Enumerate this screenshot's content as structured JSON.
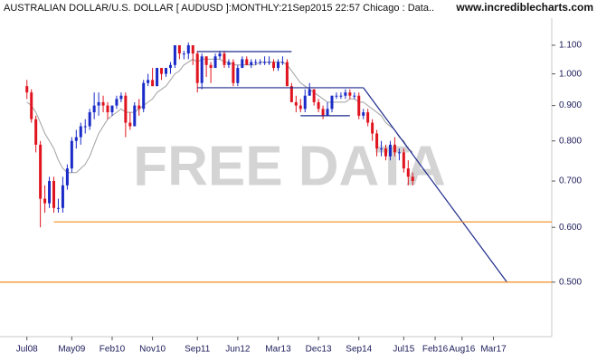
{
  "chart_data": {
    "type": "candlestick",
    "title": "AUSTRALIAN DOLLAR/U.S. DOLLAR [ AUDUSD ]:MONTHLY:21Sep2015 22:57 Chicago : Data..",
    "source": "www.incrediblecharts.com",
    "watermark": "FREE DATA",
    "log_scale": true,
    "up_color": "#1a2bc8",
    "down_color": "#e0141e",
    "xlim": [
      "2008-01",
      "2018-04"
    ],
    "ylim": [
      0.417,
      1.204
    ],
    "yticks": [
      {
        "value": 1.1,
        "label": "1.100"
      },
      {
        "value": 1.0,
        "label": "1.000"
      },
      {
        "value": 0.9,
        "label": "0.900"
      },
      {
        "value": 0.8,
        "label": "0.800"
      },
      {
        "value": 0.7,
        "label": "0.700"
      },
      {
        "value": 0.6,
        "label": "0.600"
      },
      {
        "value": 0.5,
        "label": "0.500"
      }
    ],
    "xticks": [
      {
        "value": "2008-07",
        "label": "Jul08"
      },
      {
        "value": "2009-05",
        "label": "May09"
      },
      {
        "value": "2010-02",
        "label": "Feb10"
      },
      {
        "value": "2010-11",
        "label": "Nov10"
      },
      {
        "value": "2011-09",
        "label": "Sep11"
      },
      {
        "value": "2012-06",
        "label": "Jun12"
      },
      {
        "value": "2013-03",
        "label": "Mar13"
      },
      {
        "value": "2013-12",
        "label": "Dec13"
      },
      {
        "value": "2014-09",
        "label": "Sep14"
      },
      {
        "value": "2015-07",
        "label": "Jul15"
      },
      {
        "value": "2016-02",
        "label": "Feb16"
      },
      {
        "value": "2016-08",
        "label": "Aug16"
      },
      {
        "value": "2017-03",
        "label": "Mar17"
      }
    ],
    "x": [
      "2008-07",
      "2008-08",
      "2008-09",
      "2008-10",
      "2008-11",
      "2008-12",
      "2009-01",
      "2009-02",
      "2009-03",
      "2009-04",
      "2009-05",
      "2009-06",
      "2009-07",
      "2009-08",
      "2009-09",
      "2009-10",
      "2009-11",
      "2009-12",
      "2010-01",
      "2010-02",
      "2010-03",
      "2010-04",
      "2010-05",
      "2010-06",
      "2010-07",
      "2010-08",
      "2010-09",
      "2010-10",
      "2010-11",
      "2010-12",
      "2011-01",
      "2011-02",
      "2011-03",
      "2011-04",
      "2011-05",
      "2011-06",
      "2011-07",
      "2011-08",
      "2011-09",
      "2011-10",
      "2011-11",
      "2011-12",
      "2012-01",
      "2012-02",
      "2012-03",
      "2012-04",
      "2012-05",
      "2012-06",
      "2012-07",
      "2012-08",
      "2012-09",
      "2012-10",
      "2012-11",
      "2012-12",
      "2013-01",
      "2013-02",
      "2013-03",
      "2013-04",
      "2013-05",
      "2013-06",
      "2013-07",
      "2013-08",
      "2013-09",
      "2013-10",
      "2013-11",
      "2013-12",
      "2014-01",
      "2014-02",
      "2014-03",
      "2014-04",
      "2014-05",
      "2014-06",
      "2014-07",
      "2014-08",
      "2014-09",
      "2014-10",
      "2014-11",
      "2014-12",
      "2015-01",
      "2015-02",
      "2015-03",
      "2015-04",
      "2015-05",
      "2015-06",
      "2015-07",
      "2015-08",
      "2015-09"
    ],
    "open": [
      0.96,
      0.94,
      0.86,
      0.79,
      0.66,
      0.65,
      0.7,
      0.64,
      0.64,
      0.69,
      0.73,
      0.8,
      0.81,
      0.84,
      0.84,
      0.88,
      0.9,
      0.91,
      0.9,
      0.88,
      0.9,
      0.92,
      0.93,
      0.85,
      0.84,
      0.9,
      0.89,
      0.97,
      0.98,
      0.96,
      1.02,
      1.0,
      1.02,
      1.03,
      1.1,
      1.07,
      1.07,
      1.1,
      1.07,
      0.97,
      1.06,
      1.03,
      1.02,
      1.06,
      1.07,
      1.03,
      1.04,
      0.97,
      1.02,
      1.05,
      1.03,
      1.04,
      1.04,
      1.04,
      1.04,
      1.04,
      1.02,
      1.04,
      1.04,
      0.96,
      0.91,
      0.9,
      0.89,
      0.93,
      0.95,
      0.91,
      0.89,
      0.87,
      0.89,
      0.93,
      0.93,
      0.93,
      0.94,
      0.93,
      0.93,
      0.87,
      0.88,
      0.85,
      0.82,
      0.78,
      0.78,
      0.76,
      0.79,
      0.77,
      0.77,
      0.73,
      0.71
    ],
    "high": [
      0.98,
      0.95,
      0.87,
      0.8,
      0.69,
      0.71,
      0.71,
      0.66,
      0.71,
      0.74,
      0.81,
      0.83,
      0.85,
      0.86,
      0.89,
      0.94,
      0.94,
      0.93,
      0.91,
      0.9,
      0.93,
      0.94,
      0.94,
      0.88,
      0.91,
      0.92,
      0.98,
      1.0,
      1.02,
      1.02,
      1.02,
      1.02,
      1.04,
      1.1,
      1.1,
      1.08,
      1.11,
      1.1,
      1.08,
      1.07,
      1.06,
      1.04,
      1.07,
      1.08,
      1.08,
      1.05,
      1.05,
      1.03,
      1.06,
      1.06,
      1.05,
      1.05,
      1.05,
      1.06,
      1.06,
      1.05,
      1.05,
      1.06,
      1.05,
      0.97,
      0.93,
      0.92,
      0.95,
      0.97,
      0.95,
      0.92,
      0.9,
      0.91,
      0.93,
      0.94,
      0.94,
      0.95,
      0.95,
      0.94,
      0.94,
      0.89,
      0.89,
      0.86,
      0.83,
      0.8,
      0.79,
      0.8,
      0.81,
      0.78,
      0.78,
      0.75,
      0.72
    ],
    "low": [
      0.92,
      0.85,
      0.77,
      0.6,
      0.63,
      0.64,
      0.63,
      0.63,
      0.63,
      0.68,
      0.72,
      0.78,
      0.79,
      0.82,
      0.83,
      0.86,
      0.87,
      0.88,
      0.86,
      0.87,
      0.89,
      0.91,
      0.81,
      0.83,
      0.84,
      0.87,
      0.88,
      0.96,
      0.96,
      0.96,
      0.98,
      0.99,
      1.0,
      1.02,
      1.05,
      1.05,
      1.05,
      1.03,
      0.94,
      0.95,
      0.99,
      0.97,
      1.02,
      1.05,
      1.02,
      1.02,
      0.96,
      0.96,
      1.02,
      1.03,
      1.02,
      1.03,
      1.03,
      1.03,
      1.03,
      1.01,
      1.01,
      1.03,
      0.96,
      0.91,
      0.88,
      0.88,
      0.88,
      0.93,
      0.9,
      0.88,
      0.86,
      0.87,
      0.88,
      0.92,
      0.92,
      0.92,
      0.92,
      0.92,
      0.86,
      0.86,
      0.84,
      0.8,
      0.76,
      0.76,
      0.75,
      0.75,
      0.76,
      0.75,
      0.72,
      0.69,
      0.69
    ],
    "close": [
      0.94,
      0.86,
      0.79,
      0.66,
      0.65,
      0.7,
      0.64,
      0.64,
      0.69,
      0.73,
      0.8,
      0.81,
      0.84,
      0.84,
      0.88,
      0.9,
      0.91,
      0.9,
      0.88,
      0.9,
      0.92,
      0.93,
      0.85,
      0.84,
      0.9,
      0.89,
      0.97,
      0.98,
      0.96,
      1.02,
      1.0,
      1.02,
      1.03,
      1.1,
      1.07,
      1.07,
      1.1,
      1.07,
      0.97,
      1.06,
      1.03,
      1.02,
      1.06,
      1.07,
      1.03,
      1.04,
      0.97,
      1.02,
      1.05,
      1.03,
      1.04,
      1.04,
      1.04,
      1.04,
      1.04,
      1.02,
      1.04,
      1.04,
      0.96,
      0.91,
      0.9,
      0.89,
      0.93,
      0.95,
      0.91,
      0.89,
      0.87,
      0.89,
      0.93,
      0.93,
      0.93,
      0.94,
      0.93,
      0.93,
      0.87,
      0.88,
      0.85,
      0.82,
      0.78,
      0.78,
      0.76,
      0.79,
      0.77,
      0.77,
      0.73,
      0.71,
      0.7
    ],
    "moving_average": {
      "color": "#a0a0a0",
      "values": [
        0.91,
        0.9,
        0.88,
        0.85,
        0.82,
        0.8,
        0.78,
        0.75,
        0.73,
        0.72,
        0.72,
        0.72,
        0.73,
        0.74,
        0.76,
        0.79,
        0.82,
        0.84,
        0.86,
        0.87,
        0.88,
        0.89,
        0.88,
        0.88,
        0.88,
        0.89,
        0.9,
        0.91,
        0.92,
        0.94,
        0.95,
        0.96,
        0.98,
        1.0,
        1.01,
        1.03,
        1.04,
        1.05,
        1.04,
        1.05,
        1.05,
        1.05,
        1.05,
        1.05,
        1.04,
        1.04,
        1.03,
        1.03,
        1.03,
        1.03,
        1.03,
        1.03,
        1.04,
        1.04,
        1.04,
        1.04,
        1.04,
        1.04,
        1.03,
        1.01,
        0.99,
        0.97,
        0.96,
        0.95,
        0.94,
        0.93,
        0.92,
        0.91,
        0.91,
        0.91,
        0.91,
        0.91,
        0.92,
        0.92,
        0.91,
        0.91,
        0.9,
        0.89,
        0.88,
        0.87,
        0.85,
        0.84,
        0.83,
        0.81,
        0.8,
        0.78,
        0.77
      ]
    },
    "lines": [
      {
        "color": "#1c2a8c",
        "x": [
          "2011-09",
          "2013-06"
        ],
        "y": [
          1.077,
          1.077
        ]
      },
      {
        "color": "#1c2a8c",
        "x": [
          "2011-09",
          "2014-10"
        ],
        "y": [
          0.955,
          0.955
        ]
      },
      {
        "color": "#1c2a8c",
        "x": [
          "2013-08",
          "2014-07"
        ],
        "y": [
          0.87,
          0.87
        ]
      },
      {
        "color": "#1c2a8c",
        "x": [
          "2014-10",
          "2017-06"
        ],
        "y": [
          0.955,
          0.5
        ]
      },
      {
        "color": "#f08c1e",
        "x": [
          "2009-01",
          "2018-04"
        ],
        "y": [
          0.611,
          0.611
        ]
      },
      {
        "color": "#f08c1e",
        "x": [
          "2008-01",
          "2018-04"
        ],
        "y": [
          0.5,
          0.5
        ]
      }
    ]
  }
}
